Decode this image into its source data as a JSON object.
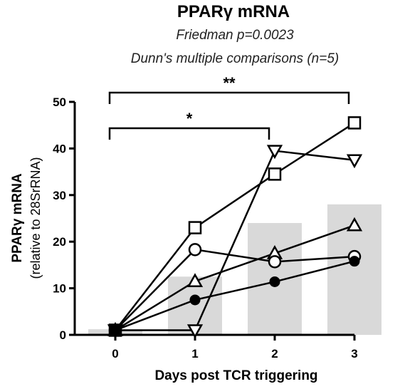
{
  "chart_data": {
    "type": "bar",
    "title": "PPARγ mRNA",
    "subtitle_lines": [
      "Friedman p=0.0023",
      "Dunn's multiple comparisons (n=5)"
    ],
    "xlabel": "Days post TCR triggering",
    "ylabel_lines": [
      "PPARγ mRNA",
      "(relative to 28SrRNA)"
    ],
    "categories": [
      "0",
      "1",
      "2",
      "3"
    ],
    "x": [
      0,
      1,
      2,
      3
    ],
    "values": [
      1.2,
      12.5,
      24,
      28
    ],
    "ylim": [
      0,
      50
    ],
    "yticks": [
      0,
      10,
      20,
      30,
      40,
      50
    ],
    "bar_color": "#d9d9d9",
    "series": [
      {
        "marker": "square",
        "values": [
          1,
          23,
          34.5,
          45.5
        ]
      },
      {
        "marker": "triangle-down",
        "values": [
          1,
          1,
          39.5,
          37.5
        ]
      },
      {
        "marker": "triangle-up",
        "values": [
          1,
          11.5,
          17.5,
          23.5
        ]
      },
      {
        "marker": "circle-open",
        "values": [
          1,
          18.3,
          15.7,
          16.8
        ]
      },
      {
        "marker": "circle-filled",
        "values": [
          1,
          7.5,
          11.4,
          15.8
        ]
      }
    ],
    "significance": [
      {
        "from": 0,
        "to": 3,
        "label": "**"
      },
      {
        "from": 0,
        "to": 2,
        "label": "*"
      }
    ],
    "grid": false,
    "legend": "none"
  }
}
